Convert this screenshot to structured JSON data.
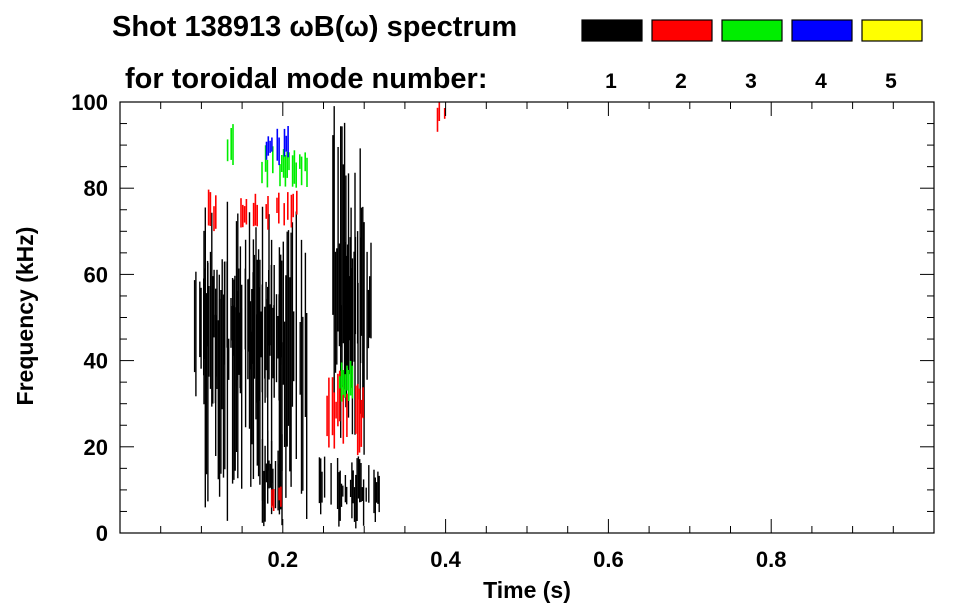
{
  "chart_data": {
    "type": "heatmap",
    "title": "Shot 138913 ωB(ω) spectrum",
    "subtitle": "for toroidal mode number:",
    "xlabel": "Time (s)",
    "ylabel": "Frequency (kHz)",
    "xlim": [
      0.0,
      1.0
    ],
    "ylim": [
      0,
      100
    ],
    "x_ticks": [
      0.2,
      0.4,
      0.6,
      0.8
    ],
    "x_tick_labels": [
      "0.2",
      "0.4",
      "0.6",
      "0.8"
    ],
    "y_ticks": [
      0,
      20,
      40,
      60,
      80,
      100
    ],
    "y_tick_labels": [
      "0",
      "20",
      "40",
      "60",
      "80",
      "100"
    ],
    "legend_position": "top-right",
    "legend": [
      {
        "label": "1",
        "color": "#000000"
      },
      {
        "label": "2",
        "color": "#ff0000"
      },
      {
        "label": "3",
        "color": "#00ee00"
      },
      {
        "label": "4",
        "color": "#0000ff"
      },
      {
        "label": "5",
        "color": "#ffff00"
      }
    ],
    "series": [
      {
        "name": "1",
        "color": "#000000",
        "regions": [
          {
            "t": [
              0.09,
              0.2
            ],
            "f": [
              30,
              65
            ]
          },
          {
            "t": [
              0.1,
              0.23
            ],
            "f": [
              2,
              78
            ]
          },
          {
            "t": [
              0.175,
              0.2
            ],
            "f": [
              1,
              25
            ]
          },
          {
            "t": [
              0.245,
              0.32
            ],
            "f": [
              1,
              18
            ]
          },
          {
            "t": [
              0.27,
              0.31
            ],
            "f": [
              30,
              70
            ]
          },
          {
            "t": [
              0.26,
              0.3
            ],
            "f": [
              18,
              100
            ]
          }
        ]
      },
      {
        "name": "2",
        "color": "#ff0000",
        "regions": [
          {
            "t": [
              0.1,
              0.22
            ],
            "f": [
              70,
              80
            ]
          },
          {
            "t": [
              0.25,
              0.3
            ],
            "f": [
              18,
              38
            ]
          },
          {
            "t": [
              0.18,
              0.2
            ],
            "f": [
              5,
              12
            ]
          },
          {
            "t": [
              0.39,
              0.4
            ],
            "f": [
              93,
              100
            ]
          }
        ]
      },
      {
        "name": "3",
        "color": "#00ee00",
        "regions": [
          {
            "t": [
              0.17,
              0.23
            ],
            "f": [
              80,
              90
            ]
          },
          {
            "t": [
              0.13,
              0.14
            ],
            "f": [
              85,
              95
            ]
          },
          {
            "t": [
              0.27,
              0.29
            ],
            "f": [
              30,
              40
            ]
          }
        ]
      },
      {
        "name": "4",
        "color": "#0000ff",
        "regions": [
          {
            "t": [
              0.18,
              0.21
            ],
            "f": [
              85,
              95
            ]
          }
        ]
      },
      {
        "name": "5",
        "color": "#ffff00",
        "regions": []
      }
    ]
  }
}
